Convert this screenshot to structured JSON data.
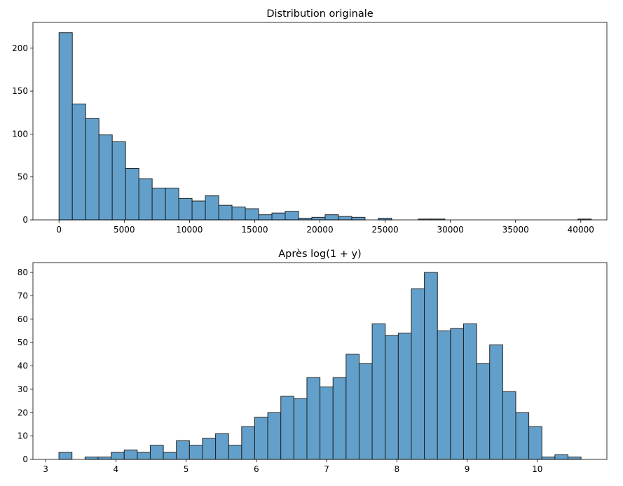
{
  "chart_data": [
    {
      "type": "bar",
      "title": "Distribution originale",
      "xlabel": "",
      "ylabel": "",
      "bin_start": 0,
      "bin_width": 1020,
      "values": [
        218,
        135,
        118,
        99,
        91,
        60,
        48,
        37,
        37,
        25,
        22,
        28,
        17,
        15,
        13,
        6,
        8,
        10,
        2,
        3,
        6,
        4,
        3,
        0,
        2,
        0,
        0,
        1,
        1,
        0,
        0,
        0,
        0,
        0,
        0,
        0,
        0,
        0,
        0,
        1
      ],
      "xlim": [
        -2000,
        42000
      ],
      "ylim": [
        0,
        230
      ],
      "xticks": [
        0,
        5000,
        10000,
        15000,
        20000,
        25000,
        30000,
        35000,
        40000
      ],
      "yticks": [
        0,
        50,
        100,
        150,
        200
      ],
      "bar_color": "#62a0cb",
      "edge_color": "#222222"
    },
    {
      "type": "bar",
      "title": "Après log(1 + y)",
      "xlabel": "",
      "ylabel": "",
      "bin_start": 3.19,
      "bin_width": 0.1858,
      "values": [
        3,
        0,
        1,
        1,
        3,
        4,
        3,
        6,
        3,
        8,
        6,
        9,
        11,
        6,
        14,
        18,
        20,
        27,
        26,
        35,
        31,
        35,
        45,
        41,
        58,
        53,
        54,
        73,
        80,
        55,
        56,
        58,
        41,
        49,
        29,
        20,
        14,
        1,
        2,
        1
      ],
      "xlim": [
        2.82,
        10.99
      ],
      "ylim": [
        0,
        84.2
      ],
      "xticks": [
        3,
        4,
        5,
        6,
        7,
        8,
        9,
        10
      ],
      "yticks": [
        0,
        10,
        20,
        30,
        40,
        50,
        60,
        70,
        80
      ],
      "bar_color": "#62a0cb",
      "edge_color": "#222222"
    }
  ]
}
